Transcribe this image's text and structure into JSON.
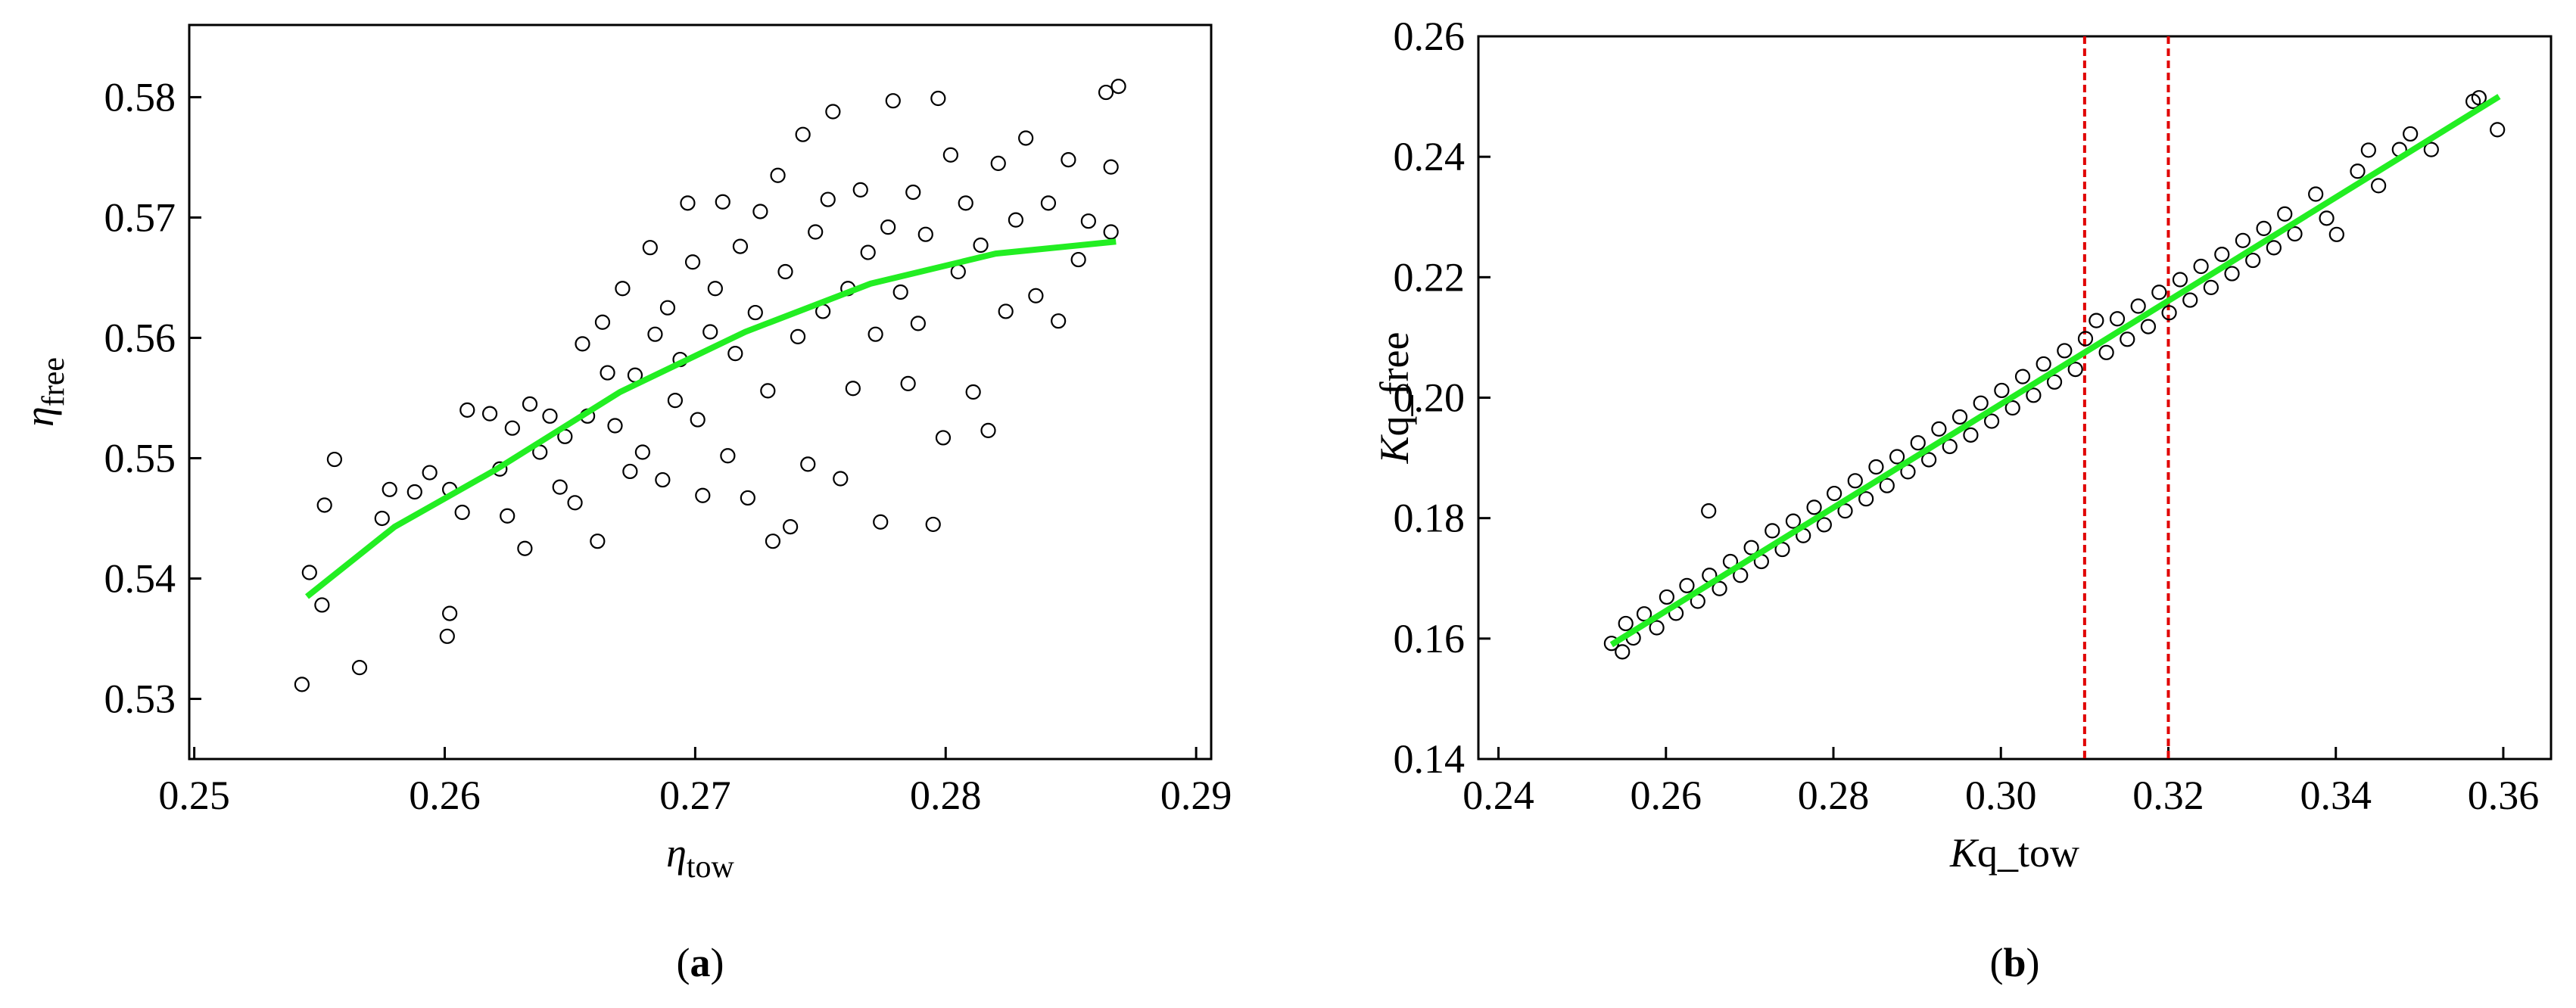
{
  "chart_data": [
    {
      "type": "scatter",
      "caption": [
        "(",
        "a",
        ")"
      ],
      "xlabel": {
        "symbol": "η",
        "subscript": "tow"
      },
      "ylabel": {
        "symbol": "η",
        "subscript": "free"
      },
      "xlim": [
        0.2498,
        0.2906
      ],
      "ylim": [
        0.525,
        0.586
      ],
      "xticks": [
        0.25,
        0.26,
        0.27,
        0.28,
        0.29
      ],
      "yticks": [
        0.53,
        0.54,
        0.55,
        0.56,
        0.57,
        0.58
      ],
      "marker_color": "#000000",
      "x": [
        0.2543,
        0.2546,
        0.2551,
        0.2552,
        0.2556,
        0.2566,
        0.2575,
        0.2578,
        0.2588,
        0.2594,
        0.2601,
        0.2602,
        0.2602,
        0.2607,
        0.2609,
        0.2618,
        0.2622,
        0.2625,
        0.2627,
        0.2632,
        0.2634,
        0.2638,
        0.2642,
        0.2646,
        0.2648,
        0.2652,
        0.2655,
        0.2657,
        0.2661,
        0.2663,
        0.2665,
        0.2668,
        0.2671,
        0.2674,
        0.2676,
        0.2679,
        0.2682,
        0.2684,
        0.2687,
        0.2689,
        0.2692,
        0.2694,
        0.2697,
        0.2699,
        0.2701,
        0.2703,
        0.2706,
        0.2708,
        0.2711,
        0.2713,
        0.2716,
        0.2718,
        0.2721,
        0.2724,
        0.2726,
        0.2729,
        0.2731,
        0.2733,
        0.2736,
        0.2738,
        0.2741,
        0.2743,
        0.2745,
        0.2748,
        0.2751,
        0.2753,
        0.2755,
        0.2758,
        0.2761,
        0.2763,
        0.2766,
        0.2769,
        0.2772,
        0.2774,
        0.2777,
        0.2779,
        0.2782,
        0.2785,
        0.2787,
        0.2789,
        0.2792,
        0.2795,
        0.2797,
        0.2799,
        0.2802,
        0.2805,
        0.2808,
        0.2811,
        0.2814,
        0.2817,
        0.2821,
        0.2824,
        0.2828,
        0.2832,
        0.2836,
        0.2841,
        0.2845,
        0.2849,
        0.2853,
        0.2857,
        0.2864,
        0.2866,
        0.2869,
        0.2866
      ],
      "values": [
        0.5312,
        0.5405,
        0.5378,
        0.5461,
        0.5499,
        0.5326,
        0.545,
        0.5474,
        0.5472,
        0.5488,
        0.5352,
        0.5371,
        0.5474,
        0.5455,
        0.554,
        0.5537,
        0.5491,
        0.5452,
        0.5525,
        0.5425,
        0.5545,
        0.5505,
        0.5535,
        0.5476,
        0.5518,
        0.5463,
        0.5595,
        0.5535,
        0.5431,
        0.5613,
        0.5571,
        0.5527,
        0.5641,
        0.5489,
        0.5569,
        0.5505,
        0.5675,
        0.5603,
        0.5482,
        0.5625,
        0.5548,
        0.5582,
        0.5712,
        0.5663,
        0.5532,
        0.5469,
        0.5605,
        0.5641,
        0.5713,
        0.5502,
        0.5587,
        0.5676,
        0.5467,
        0.5621,
        0.5705,
        0.5556,
        0.5431,
        0.5735,
        0.5655,
        0.5443,
        0.5601,
        0.5769,
        0.5495,
        0.5688,
        0.5622,
        0.5715,
        0.5788,
        0.5483,
        0.5641,
        0.5558,
        0.5723,
        0.5671,
        0.5603,
        0.5447,
        0.5692,
        0.5797,
        0.5638,
        0.5562,
        0.5721,
        0.5612,
        0.5686,
        0.5445,
        0.5799,
        0.5517,
        0.5752,
        0.5655,
        0.5712,
        0.5555,
        0.5677,
        0.5523,
        0.5745,
        0.5622,
        0.5698,
        0.5766,
        0.5635,
        0.5712,
        0.5614,
        0.5748,
        0.5665,
        0.5697,
        0.5804,
        0.5742,
        0.5809,
        0.5688
      ],
      "fit": {
        "color": "#22ee22",
        "x": [
          0.2545,
          0.258,
          0.262,
          0.267,
          0.272,
          0.277,
          0.282,
          0.2868
        ],
        "values": [
          0.5385,
          0.5443,
          0.549,
          0.5555,
          0.5605,
          0.5645,
          0.567,
          0.568
        ]
      }
    },
    {
      "type": "scatter",
      "caption": [
        "(",
        "b",
        ")"
      ],
      "xlabel": {
        "symbol": "K",
        "text": "q_tow"
      },
      "ylabel": {
        "symbol": "K",
        "text": "q_free"
      },
      "xlim": [
        0.2376,
        0.3657
      ],
      "ylim": [
        0.14,
        0.26
      ],
      "xticks": [
        0.24,
        0.26,
        0.28,
        {
          "value": 0.3,
          "label": "0.30"
        },
        0.32,
        0.34,
        0.36
      ],
      "yticks": [
        0.14,
        0.16,
        0.18,
        {
          "value": 0.2,
          "label": "0.20"
        },
        0.22,
        0.24,
        0.26
      ],
      "marker_color": "#000000",
      "vlines": [
        0.31,
        0.32
      ],
      "vline_color": "#e00000",
      "x": [
        0.2535,
        0.2548,
        0.2552,
        0.2561,
        0.2574,
        0.2589,
        0.2601,
        0.2612,
        0.2625,
        0.2638,
        0.2651,
        0.2652,
        0.2664,
        0.2677,
        0.2689,
        0.2702,
        0.2714,
        0.2727,
        0.2739,
        0.2752,
        0.2764,
        0.2777,
        0.2789,
        0.2801,
        0.2814,
        0.2826,
        0.2839,
        0.2851,
        0.2864,
        0.2876,
        0.2889,
        0.2901,
        0.2914,
        0.2926,
        0.2939,
        0.2951,
        0.2964,
        0.2976,
        0.2989,
        0.3001,
        0.3014,
        0.3026,
        0.3039,
        0.3051,
        0.3064,
        0.3076,
        0.3089,
        0.3101,
        0.3114,
        0.3126,
        0.3139,
        0.3151,
        0.3164,
        0.3176,
        0.3189,
        0.3201,
        0.3214,
        0.3226,
        0.3239,
        0.3251,
        0.3264,
        0.3276,
        0.3289,
        0.3301,
        0.3314,
        0.3326,
        0.3339,
        0.3351,
        0.3376,
        0.3389,
        0.3401,
        0.3426,
        0.3439,
        0.3451,
        0.3476,
        0.3489,
        0.3514,
        0.3564,
        0.3571,
        0.3593
      ],
      "values": [
        0.1592,
        0.1578,
        0.1625,
        0.1601,
        0.1641,
        0.1618,
        0.1669,
        0.1642,
        0.1688,
        0.1662,
        0.1812,
        0.1705,
        0.1683,
        0.1728,
        0.1705,
        0.1751,
        0.1728,
        0.1779,
        0.1748,
        0.1795,
        0.1771,
        0.1818,
        0.1789,
        0.1841,
        0.1812,
        0.1862,
        0.1832,
        0.1885,
        0.1854,
        0.1902,
        0.1877,
        0.1925,
        0.1897,
        0.1948,
        0.1919,
        0.1968,
        0.1938,
        0.1991,
        0.1961,
        0.2012,
        0.1983,
        0.2035,
        0.2004,
        0.2056,
        0.2026,
        0.2078,
        0.2047,
        0.2098,
        0.2128,
        0.2075,
        0.2131,
        0.2097,
        0.2152,
        0.2118,
        0.2175,
        0.2141,
        0.2196,
        0.2162,
        0.2218,
        0.2183,
        0.2238,
        0.2206,
        0.2261,
        0.2228,
        0.2281,
        0.2249,
        0.2305,
        0.2272,
        0.2338,
        0.2298,
        0.2271,
        0.2376,
        0.2411,
        0.2352,
        0.2412,
        0.2438,
        0.2412,
        0.2492,
        0.2498,
        0.2445
      ],
      "fit": {
        "color": "#22ee22",
        "x": [
          0.2535,
          0.3595
        ],
        "values": [
          0.159,
          0.25
        ]
      }
    }
  ]
}
